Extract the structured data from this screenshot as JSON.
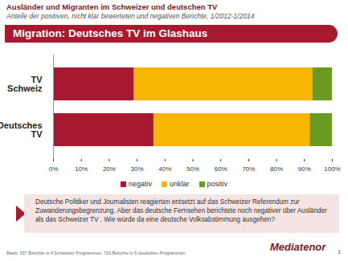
{
  "chart_data": {
    "type": "bar",
    "supertitle": "Ausländer und Migranten im Schweizer und deutschen TV",
    "subtitle": "Anteile der positiven, nicht klar bewerteten und negativen Berichte, 1/2012-1/2014",
    "title": "Migration: Deutsches TV im Glashaus",
    "categories": [
      "TV Schweiz",
      "Deutsches TV"
    ],
    "series": [
      {
        "name": "negativ",
        "color": "#a6192e",
        "values": [
          29,
          36
        ]
      },
      {
        "name": "unklar",
        "color": "#f9b600",
        "values": [
          64,
          56
        ]
      },
      {
        "name": "positiv",
        "color": "#6a9a1f",
        "values": [
          7,
          8
        ]
      }
    ],
    "orientation": "horizontal",
    "stacked": true,
    "xlim": [
      0,
      100
    ],
    "xticks": [
      {
        "value": 0,
        "label": "0%"
      },
      {
        "value": 10,
        "label": "10%"
      },
      {
        "value": 20,
        "label": "20%"
      },
      {
        "value": 30,
        "label": "30%"
      },
      {
        "value": 40,
        "label": "40%"
      },
      {
        "value": 50,
        "label": "50%"
      },
      {
        "value": 60,
        "label": "60%"
      },
      {
        "value": 70,
        "label": "70%"
      },
      {
        "value": 80,
        "label": "80%"
      },
      {
        "value": 90,
        "label": "90%"
      },
      {
        "value": 100,
        "label": "100%"
      }
    ],
    "grid": false,
    "legend": "bottom",
    "annotation": "Deutsche Politiker und Journalisten reagierten entsetzt auf das Schweizer Referendum zur Zuwanderungsbegrenzung. Aber das deutsche Fernsehen berichtete noch negativer über Ausländer als das Schweizer TV . Wie würde da eine deutsche Volksabstimmung ausgehen?",
    "source": "Basis: 337 Berichte in 4 Schweizer Programmen, 726 Berichte in 5 deutschen Programmen",
    "logo": "Mediatenor",
    "page_number": "1"
  }
}
